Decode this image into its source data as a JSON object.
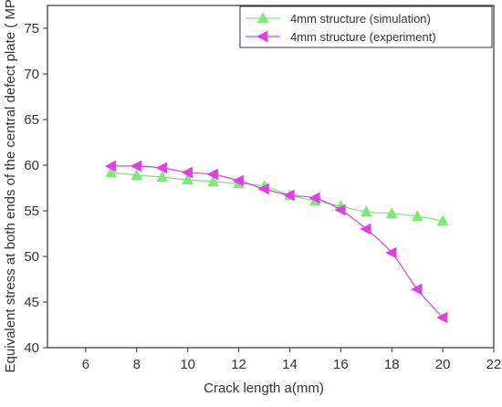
{
  "chart_data": {
    "type": "line",
    "xlabel": "Crack length a(mm)",
    "ylabel": "Equivalent stress at both ends of the central defect plate ( MPa )",
    "xlim": [
      4.5,
      22
    ],
    "ylim": [
      40,
      77.5
    ],
    "xticks": [
      6,
      8,
      10,
      12,
      14,
      16,
      18,
      20,
      22
    ],
    "yticks": [
      40,
      45,
      50,
      55,
      60,
      65,
      70,
      75
    ],
    "grid": false,
    "legend_position": "top-right",
    "series": [
      {
        "name": "4mm structure (simulation)",
        "color": "#7ee87a",
        "marker": "triangle-up",
        "x": [
          7,
          8,
          9,
          10,
          11,
          12,
          13,
          14,
          15,
          16,
          17,
          18,
          19,
          20
        ],
        "y": [
          59.2,
          58.9,
          58.7,
          58.4,
          58.2,
          58.0,
          57.7,
          56.7,
          56.1,
          55.5,
          54.9,
          54.7,
          54.4,
          53.9
        ]
      },
      {
        "name": "4mm structure (experiment)",
        "color": "#e040e0",
        "marker": "triangle-left",
        "x": [
          7,
          8,
          9,
          10,
          11,
          12,
          13,
          14,
          15,
          16,
          17,
          18,
          19,
          20
        ],
        "y": [
          59.9,
          59.9,
          59.7,
          59.2,
          59.0,
          58.3,
          57.4,
          56.7,
          56.4,
          55.1,
          53.0,
          50.4,
          46.4,
          43.3
        ]
      }
    ]
  }
}
